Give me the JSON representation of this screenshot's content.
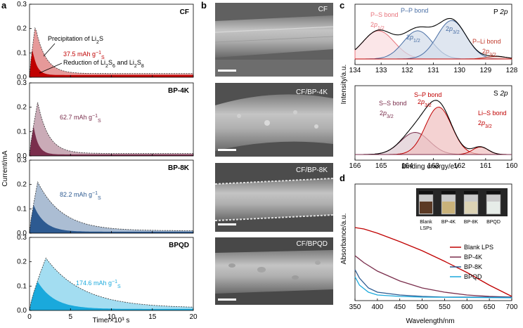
{
  "panels": {
    "a": "a",
    "b": "b",
    "c": "c",
    "d": "d"
  },
  "colors": {
    "cf": "#c00000",
    "bp4k": "#7a2e4c",
    "bp8k": "#2d5a91",
    "bpqd": "#1aa9dc",
    "ps": "#e8747c",
    "pp": "#4a6fa5",
    "pli": "#c0392b"
  },
  "chart_data": [
    {
      "type": "area",
      "panel": "a",
      "xlabel": "Time/×10³ s",
      "ylabel": "Current/mA",
      "xlim": [
        0,
        20
      ],
      "ylim": [
        0,
        0.3
      ],
      "xticks": [
        "0",
        "5",
        "10",
        "15",
        "20"
      ],
      "yticks": [
        "0.0",
        "0.1",
        "0.2",
        "0.3"
      ],
      "subplots": [
        {
          "name": "CF",
          "capacity_label": "37.5 mAh g",
          "capacity_unit": "−1",
          "capacity_sub": "S",
          "color": "#c00000",
          "peak_x": 0.7,
          "peak_y": 0.21,
          "tail": 0.015,
          "decay": 1.2
        },
        {
          "name": "BP-4K",
          "capacity_label": "62.7 mAh g",
          "capacity_unit": "−1",
          "capacity_sub": "S",
          "color": "#7a2e4c",
          "peak_x": 1.0,
          "peak_y": 0.22,
          "tail": 0.01,
          "decay": 1.3
        },
        {
          "name": "BP-8K",
          "capacity_label": "82.2 mAh g",
          "capacity_unit": "−1",
          "capacity_sub": "S",
          "color": "#2d5a91",
          "peak_x": 1.0,
          "peak_y": 0.21,
          "tail": 0.01,
          "decay": 3.0
        },
        {
          "name": "BPQD",
          "capacity_label": "174.6 mAh g",
          "capacity_unit": "−1",
          "capacity_sub": "S",
          "color": "#1aa9dc",
          "peak_x": 2.0,
          "peak_y": 0.215,
          "tail": 0.01,
          "decay": 4.5
        }
      ],
      "annotations": {
        "precipitation": "Precipitation of Li",
        "precipitation_sub": "2",
        "precipitation_end": "S",
        "reduction": "Reduction of Li",
        "reduction_sub1": "2",
        "reduction_mid": "S",
        "reduction_sub2": "6",
        "reduction_and": " and Li",
        "reduction_sub3": "2",
        "reduction_end": "S",
        "reduction_sub4": "8"
      }
    },
    {
      "type": "line",
      "panel": "c",
      "xlabel": "Binding energy/eV",
      "ylabel": "Intensity/a.u.",
      "top": {
        "title": "P 2p",
        "xlim": [
          134,
          128
        ],
        "xticks": [
          "134",
          "133",
          "132",
          "131",
          "130",
          "129",
          "128"
        ],
        "peaks": [
          {
            "label": "P–S bond",
            "sub": "2p",
            "sub2": "1/2",
            "center": 133.1,
            "color": "#e8747c"
          },
          {
            "label": "P–P bond",
            "sub": "2p",
            "sub2": "1/2",
            "center": 131.6,
            "color": "#4a6fa5"
          },
          {
            "label": "",
            "sub": "2p",
            "sub2": "3/2",
            "center": 130.3,
            "color": "#4a6fa5"
          },
          {
            "label": "P–Li bond",
            "sub": "2p",
            "sub2": "3/2",
            "center": 128.6,
            "color": "#c0392b"
          }
        ]
      },
      "bottom": {
        "title": "S 2p",
        "xlim": [
          166,
          160
        ],
        "xticks": [
          "166",
          "165",
          "164",
          "163",
          "162",
          "161",
          "160"
        ],
        "peaks": [
          {
            "label": "S–S bond",
            "sub": "2p",
            "sub2": "3/2",
            "center": 163.7,
            "color": "#7a2e4c"
          },
          {
            "label": "S–P bond",
            "sub": "2p",
            "sub2": "3/2",
            "center": 162.8,
            "color": "#c00000"
          },
          {
            "label": "Li–S bond",
            "sub": "2p",
            "sub2": "3/2",
            "center": 161.2,
            "color": "#c00000"
          }
        ]
      }
    },
    {
      "type": "line",
      "panel": "d",
      "xlabel": "Wavelength/nm",
      "ylabel": "Absorbance/a.u.",
      "xlim": [
        350,
        700
      ],
      "xticks": [
        "350",
        "400",
        "450",
        "500",
        "550",
        "600",
        "650",
        "700"
      ],
      "series": [
        {
          "name": "Blank LPS",
          "color": "#c00000",
          "x": [
            350,
            370,
            400,
            450,
            500,
            550,
            600,
            650,
            700
          ],
          "y": [
            1.0,
            0.98,
            0.92,
            0.8,
            0.67,
            0.52,
            0.36,
            0.18,
            0.02
          ]
        },
        {
          "name": "BP-4K",
          "color": "#7a2e4c",
          "x": [
            350,
            370,
            400,
            450,
            500,
            550,
            600,
            650,
            700
          ],
          "y": [
            0.6,
            0.5,
            0.38,
            0.24,
            0.14,
            0.08,
            0.04,
            0.02,
            0.01
          ]
        },
        {
          "name": "BP-8K",
          "color": "#2d5a91",
          "x": [
            350,
            360,
            380,
            400,
            450,
            500,
            550,
            700
          ],
          "y": [
            0.4,
            0.28,
            0.14,
            0.08,
            0.04,
            0.02,
            0.01,
            0.01
          ]
        },
        {
          "name": "BPQD",
          "color": "#1aa9dc",
          "x": [
            350,
            360,
            380,
            400,
            450,
            500,
            700
          ],
          "y": [
            0.3,
            0.18,
            0.08,
            0.04,
            0.02,
            0.01,
            0.0
          ]
        }
      ],
      "vials": [
        "Blank LSPs",
        "BP-4K",
        "BP-8K",
        "BPQD"
      ]
    }
  ],
  "sem": {
    "labels": [
      "CF",
      "CF/BP-4K",
      "CF/BP-8K",
      "CF/BPQD"
    ]
  }
}
